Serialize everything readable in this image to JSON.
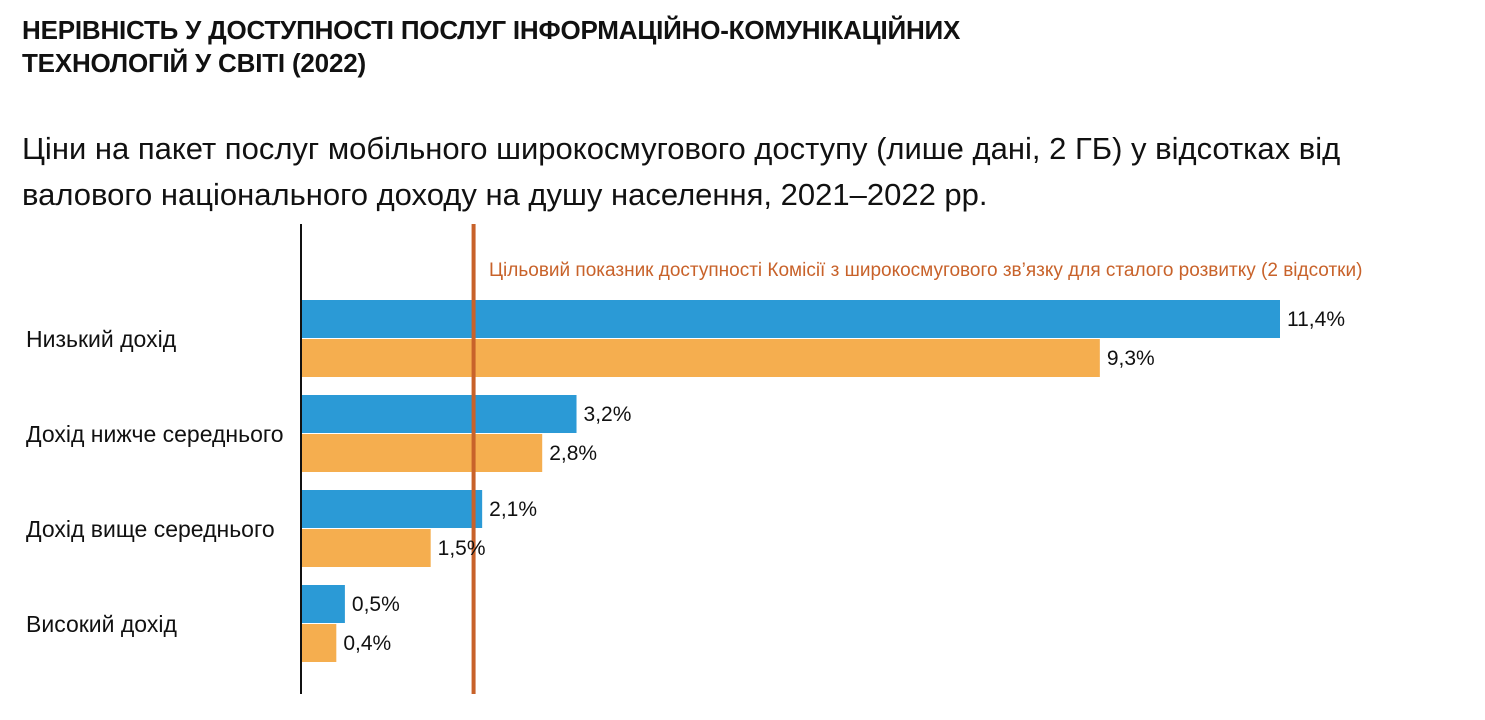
{
  "header": {
    "title_line1": "НЕРІВНІСТЬ У ДОСТУПНОСТІ ПОСЛУГ ІНФОРМАЦІЙНО-КОМУНІКАЦІЙНИХ",
    "title_line2": "ТЕХНОЛОГІЙ У СВІТІ (2022)",
    "subtitle_line1": "Ціни на пакет послуг мобільного широкосмугового доступу (лише дані, 2 ГБ) у відсотках від",
    "subtitle_line2": "валового національного доходу на душу населення, 2021–2022 рр."
  },
  "chart_data": {
    "type": "bar",
    "orientation": "horizontal",
    "categories": [
      "Низький дохід",
      "Дохід нижче середнього",
      "Дохід вище середнього",
      "Високий дохід"
    ],
    "series": [
      {
        "values": [
          11.4,
          3.2,
          2.1,
          0.5
        ],
        "color": "#2b9ad6"
      },
      {
        "values": [
          9.3,
          2.8,
          1.5,
          0.4
        ],
        "color": "#f5ae4f"
      }
    ],
    "value_labels": [
      [
        "11,4%",
        "3,2%",
        "2,1%",
        "0,5%"
      ],
      [
        "9,3%",
        "2,8%",
        "1,5%",
        "0,4%"
      ]
    ],
    "xlim": [
      0,
      11.4
    ],
    "target": {
      "value": 2,
      "label": "Цільовий показник доступності Комісії з широкосмугового зв’язку для сталого розвитку (2 відсотки)",
      "color": "#c8622a"
    },
    "grid": false,
    "legend": "none"
  }
}
